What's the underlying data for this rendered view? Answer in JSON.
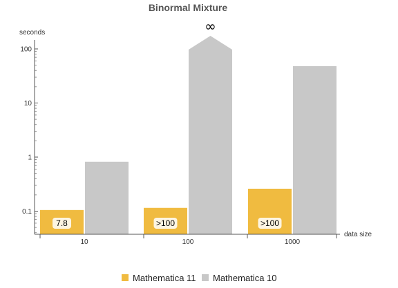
{
  "chart_data": {
    "type": "bar",
    "title": "Binormal Mixture",
    "ylabel": "seconds",
    "xlabel": "data size",
    "yscale": "log",
    "ylim": [
      0.04,
      250
    ],
    "yticks": [
      {
        "value": 0.1,
        "label": "0.1"
      },
      {
        "value": 1,
        "label": "1"
      },
      {
        "value": 10,
        "label": "10"
      },
      {
        "value": 100,
        "label": "100"
      }
    ],
    "categories": [
      "10",
      "100",
      "1000"
    ],
    "series": [
      {
        "name": "Mathematica 11",
        "color": "#f0bb40",
        "values": [
          0.105,
          0.115,
          0.26
        ],
        "labels": [
          "7.8",
          ">100",
          ">100"
        ]
      },
      {
        "name": "Mathematica 10",
        "color": "#c8c8c8",
        "values": [
          0.82,
          "infinity",
          48
        ]
      }
    ],
    "annotations": [
      {
        "category": "100",
        "series": "Mathematica 10",
        "text": "∞"
      }
    ],
    "legend": "bottom-center",
    "grid": false
  }
}
